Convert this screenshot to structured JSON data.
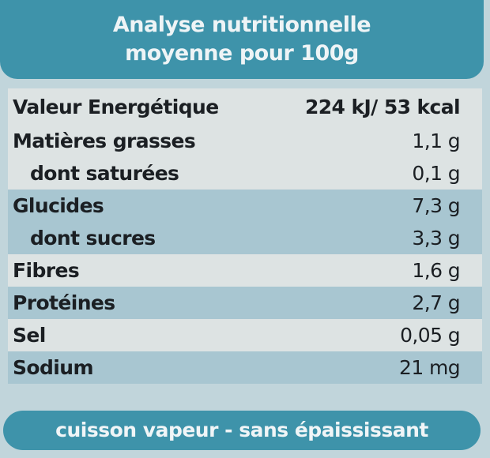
{
  "header": {
    "title": [
      "Analyse nutritionnelle",
      "moyenne pour 100g"
    ]
  },
  "table": {
    "rows": [
      [
        "Valeur Energétique",
        "224 kJ/ 53 kcal"
      ],
      [
        "Matières grasses",
        "1,1 g"
      ],
      [
        "dont saturées",
        "0,1 g"
      ],
      [
        "Glucides",
        "7,3 g"
      ],
      [
        "dont sucres",
        "3,3 g"
      ],
      [
        "Fibres",
        "1,6 g"
      ],
      [
        "Protéines",
        "2,7 g"
      ],
      [
        "Sel",
        "0,05 g"
      ],
      [
        "Sodium",
        "21 mg"
      ]
    ]
  },
  "footer": {
    "text": "cuisson vapeur - sans épaississant"
  }
}
